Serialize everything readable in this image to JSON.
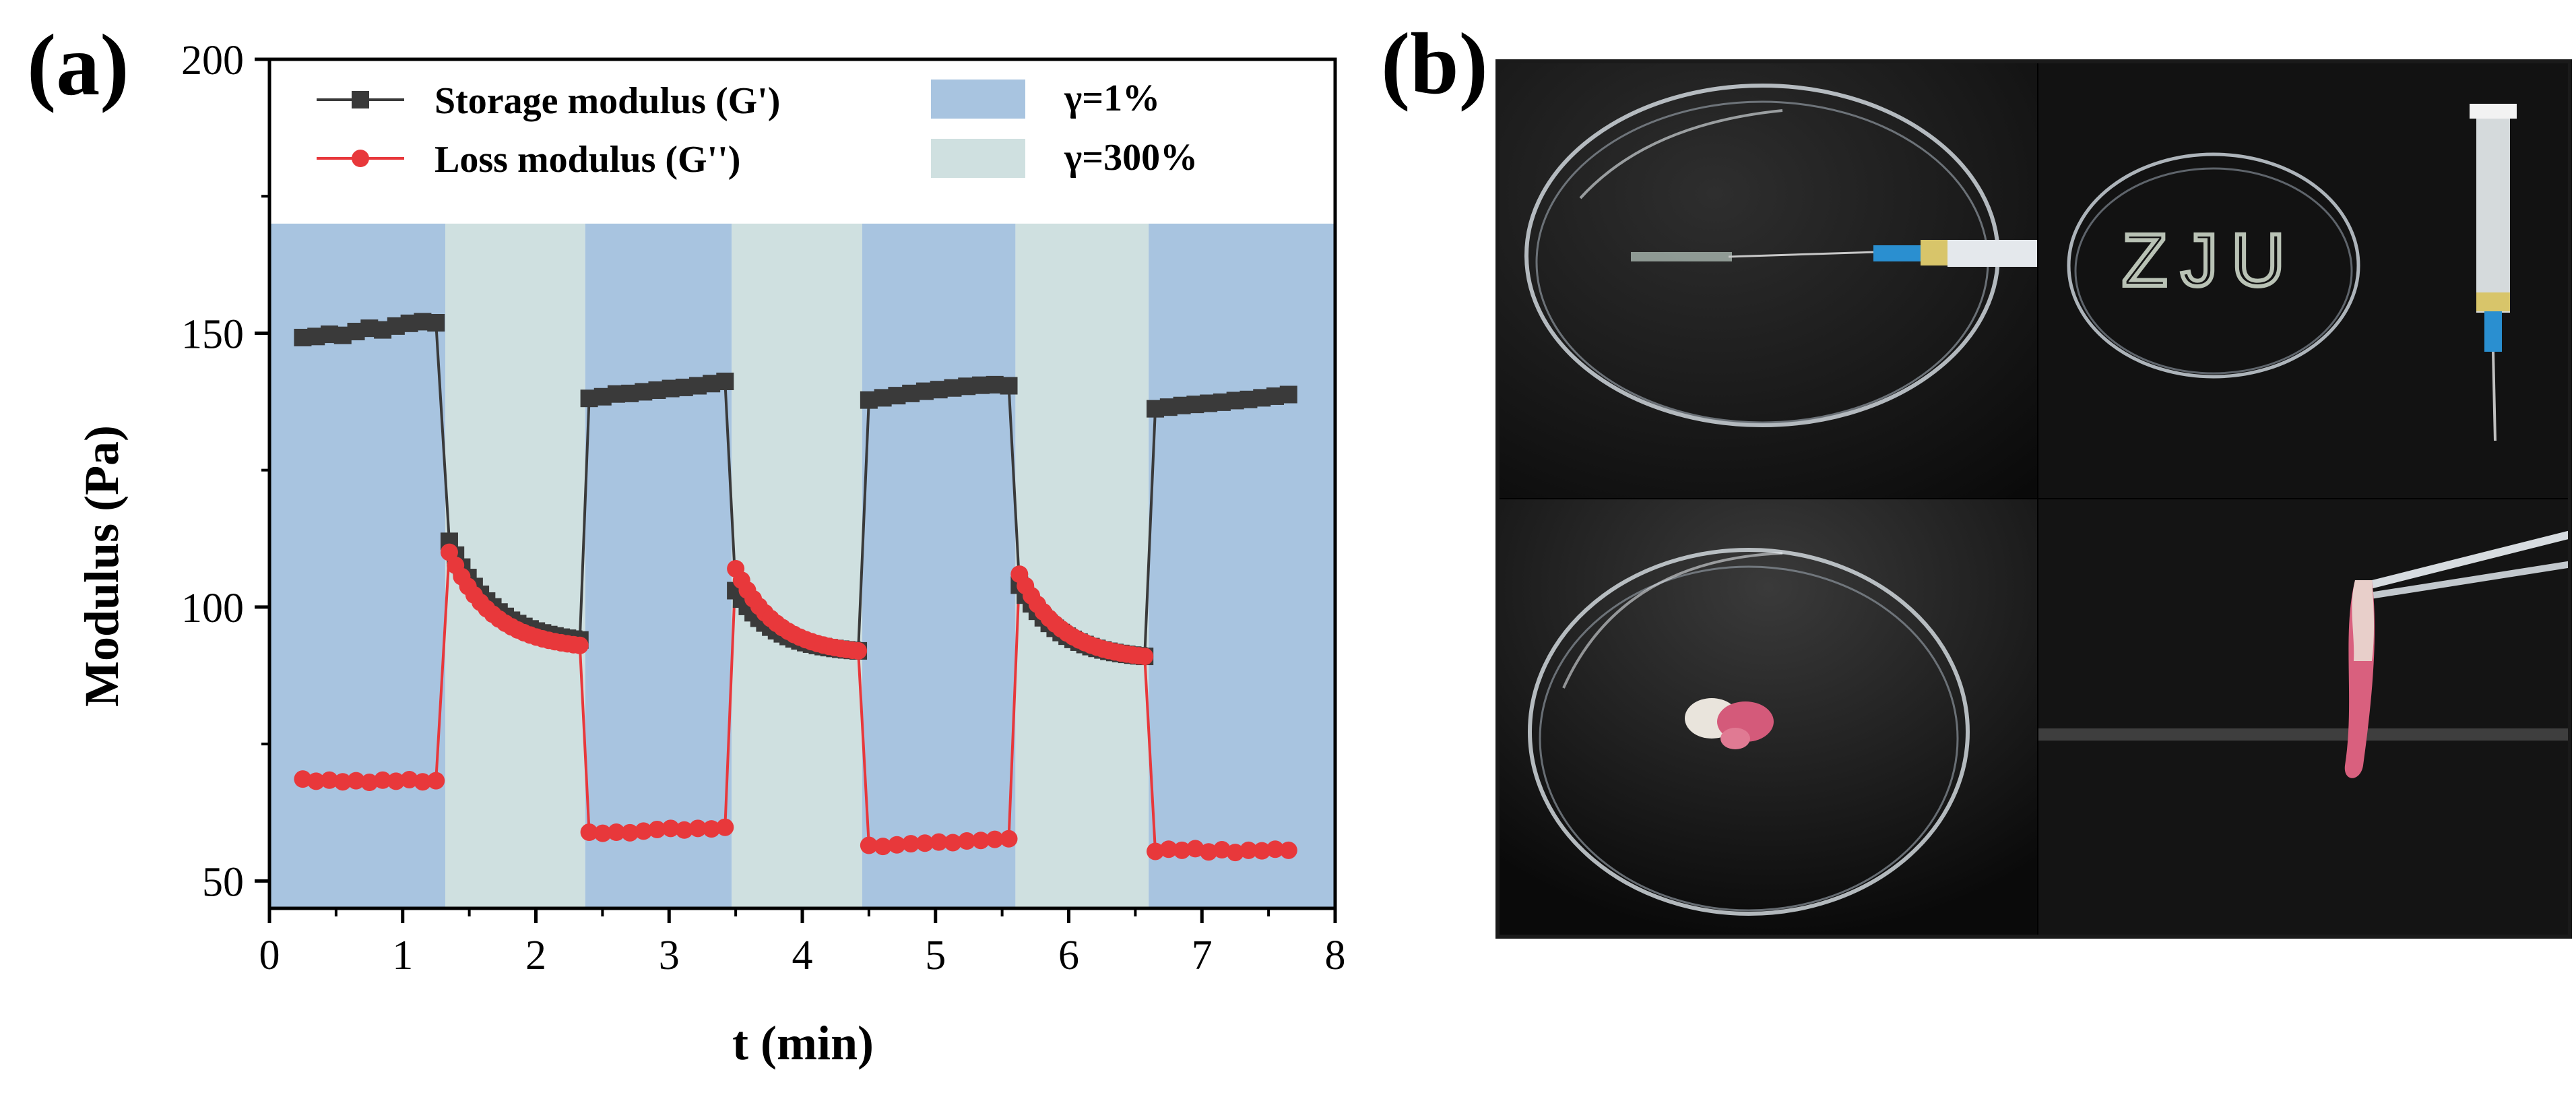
{
  "panel_a": {
    "label": "(a)",
    "chart_data": {
      "type": "line",
      "xlabel": "t (min)",
      "ylabel": "Modulus (Pa)",
      "xlim": [
        0,
        8
      ],
      "ylim": [
        45,
        200
      ],
      "x_ticks": [
        0,
        1,
        2,
        3,
        4,
        5,
        6,
        7,
        8
      ],
      "y_ticks": [
        50,
        100,
        150,
        200
      ],
      "grid": false,
      "legend_position": "top",
      "shaded_regions": [
        {
          "x0": 0.0,
          "x1": 1.32,
          "strain": "γ=1%"
        },
        {
          "x0": 1.32,
          "x1": 2.37,
          "strain": "γ=300%"
        },
        {
          "x0": 2.37,
          "x1": 3.47,
          "strain": "γ=1%"
        },
        {
          "x0": 3.47,
          "x1": 4.45,
          "strain": "γ=300%"
        },
        {
          "x0": 4.45,
          "x1": 5.6,
          "strain": "γ=1%"
        },
        {
          "x0": 5.6,
          "x1": 6.6,
          "strain": "γ=300%"
        },
        {
          "x0": 6.6,
          "x1": 8.0,
          "strain": "γ=1%"
        }
      ],
      "shaded_ymax": 170,
      "series": [
        {
          "name": "Storage modulus (G')",
          "color": "#3a3a3a",
          "marker": "square",
          "segments": [
            {
              "x0": 0.25,
              "x1": 1.25,
              "y": [
                149.2,
                149.4,
                149.8,
                149.6,
                150.3,
                150.9,
                150.6,
                151.3,
                151.8,
                152.1,
                151.9
              ]
            },
            {
              "x0": 1.35,
              "x1": 2.33,
              "y_start": 112,
              "y_end": 94,
              "decay": "exp"
            },
            {
              "x0": 2.4,
              "x1": 3.42,
              "y": [
                138.1,
                138.4,
                138.9,
                139.0,
                139.3,
                139.6,
                139.9,
                140.1,
                140.4,
                140.8,
                141.2
              ]
            },
            {
              "x0": 3.5,
              "x1": 4.42,
              "y_start": 103,
              "y_end": 92,
              "decay": "exp"
            },
            {
              "x0": 4.5,
              "x1": 5.55,
              "y": [
                137.8,
                138.2,
                138.6,
                139.0,
                139.4,
                139.7,
                140.0,
                140.3,
                140.5,
                140.6,
                140.4
              ]
            },
            {
              "x0": 5.63,
              "x1": 6.57,
              "y_start": 104,
              "y_end": 91,
              "decay": "exp"
            },
            {
              "x0": 6.65,
              "x1": 7.65,
              "y": [
                136.2,
                136.5,
                136.8,
                137.0,
                137.2,
                137.4,
                137.7,
                137.9,
                138.2,
                138.5,
                138.8
              ]
            }
          ]
        },
        {
          "name": "Loss modulus (G'')",
          "color": "#e8383b",
          "marker": "circle",
          "segments": [
            {
              "x0": 0.25,
              "x1": 1.25,
              "y": [
                68.6,
                68.2,
                68.4,
                68.1,
                68.3,
                68.0,
                68.4,
                68.2,
                68.5,
                68.1,
                68.3
              ]
            },
            {
              "x0": 1.35,
              "x1": 2.33,
              "y_start": 110,
              "y_end": 93,
              "decay": "exp"
            },
            {
              "x0": 2.4,
              "x1": 3.42,
              "y": [
                58.9,
                58.7,
                58.9,
                58.8,
                59.1,
                59.4,
                59.6,
                59.3,
                59.6,
                59.5,
                59.8
              ]
            },
            {
              "x0": 3.5,
              "x1": 4.42,
              "y_start": 107,
              "y_end": 92,
              "decay": "exp"
            },
            {
              "x0": 4.5,
              "x1": 5.55,
              "y": [
                56.5,
                56.3,
                56.6,
                56.8,
                56.9,
                57.1,
                57.0,
                57.3,
                57.4,
                57.6,
                57.7
              ]
            },
            {
              "x0": 5.63,
              "x1": 6.57,
              "y_start": 106,
              "y_end": 91,
              "decay": "exp"
            },
            {
              "x0": 6.65,
              "x1": 7.65,
              "y": [
                55.4,
                55.8,
                55.6,
                55.9,
                55.3,
                55.7,
                55.2,
                55.6,
                55.5,
                55.8,
                55.6
              ]
            }
          ]
        }
      ],
      "legend": {
        "entries": [
          "Storage modulus (G')",
          "Loss modulus (G'')"
        ],
        "region_entries": [
          {
            "label": "γ=1%",
            "color": "#a8c4e0"
          },
          {
            "label": "γ=300%",
            "color": "#cfe0e0"
          }
        ]
      }
    }
  },
  "panel_b": {
    "label": "(b)",
    "photos": [
      {
        "name": "petri-dish-needle-photo",
        "text": ""
      },
      {
        "name": "zju-letters-syringe-photo",
        "text": "ZJU"
      },
      {
        "name": "petri-dish-gel-photo",
        "text": ""
      },
      {
        "name": "tweezers-gel-photo",
        "text": ""
      }
    ]
  },
  "colors": {
    "region_low_strain": "#a8c4e0",
    "region_high_strain": "#cfe0e0",
    "storage": "#3a3a3a",
    "loss": "#e8383b"
  }
}
